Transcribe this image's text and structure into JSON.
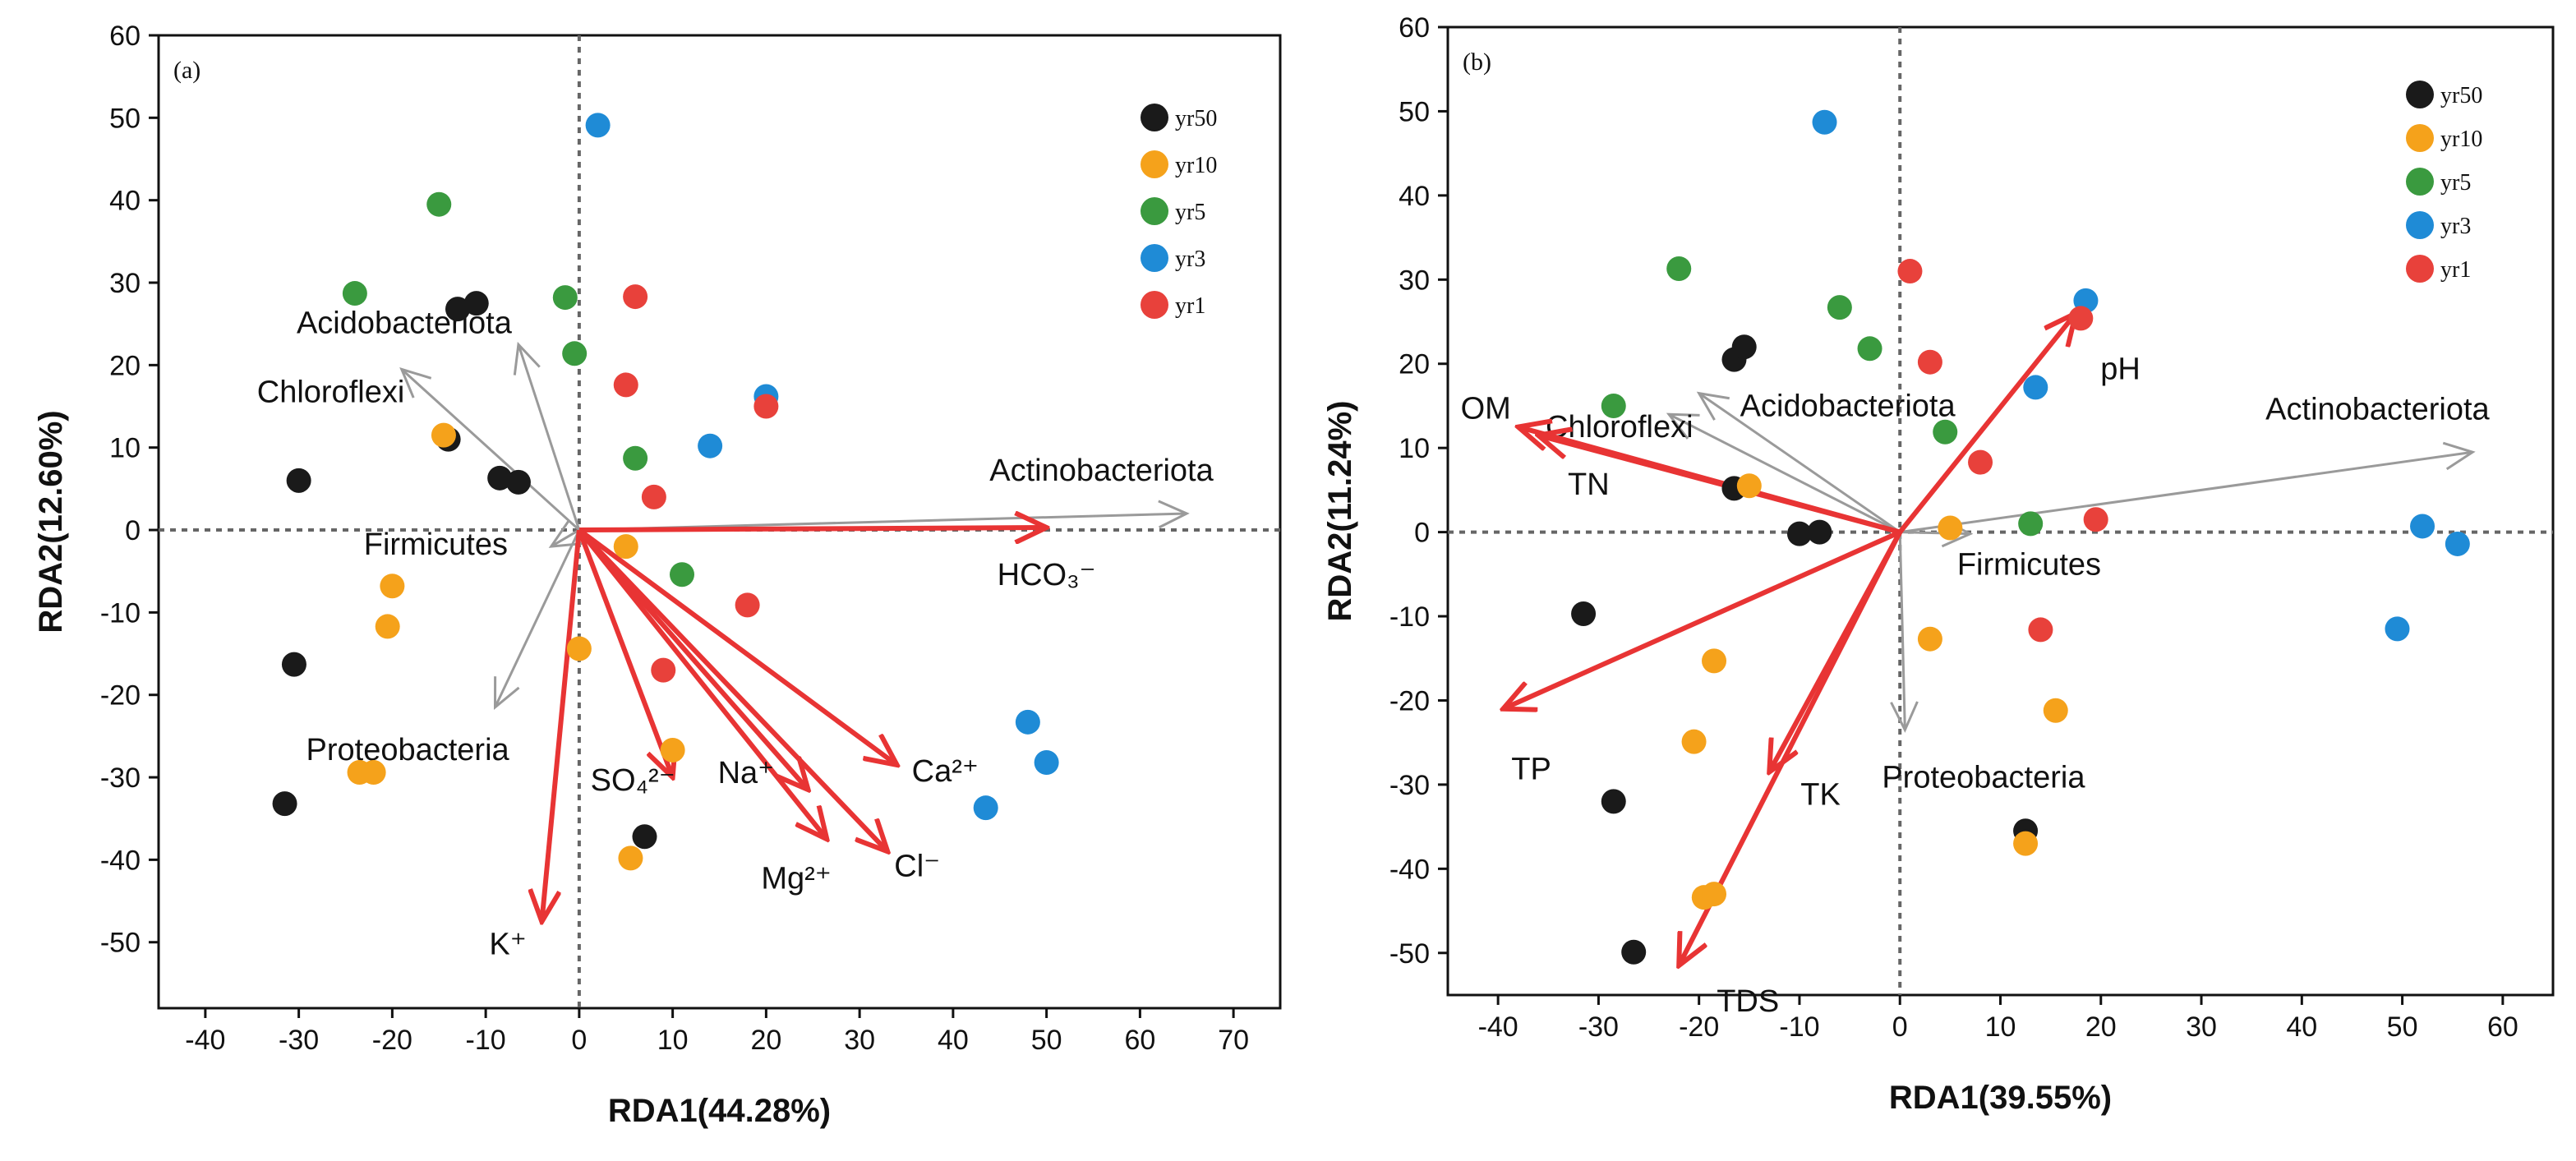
{
  "chart_data": [
    {
      "panel": "(a)",
      "type": "scatter",
      "xlabel": "RDA1(44.28%)",
      "ylabel": "RDA2(12.60%)",
      "xlim": [
        -45,
        75
      ],
      "ylim": [
        -58,
        60
      ],
      "xticks": [
        "-40",
        "-30",
        "-20",
        "-10",
        "0",
        "10",
        "20",
        "30",
        "40",
        "50",
        "60",
        "70"
      ],
      "yticks": [
        "60",
        "50",
        "40",
        "30",
        "20",
        "10",
        "0",
        "-10",
        "-20",
        "-30",
        "-40",
        "-50"
      ],
      "legend": [
        {
          "name": "yr50",
          "color": "#1a1a1a"
        },
        {
          "name": "yr10",
          "color": "#f5a21b"
        },
        {
          "name": "yr5",
          "color": "#3a9a3f"
        },
        {
          "name": "yr3",
          "color": "#1f8bd6"
        },
        {
          "name": "yr1",
          "color": "#e8413b"
        }
      ],
      "series": [
        {
          "name": "yr50",
          "points": [
            [
              -13,
              26.8
            ],
            [
              -11,
              27.5
            ],
            [
              -30,
              6
            ],
            [
              -14,
              11
            ],
            [
              -8.5,
              6.3
            ],
            [
              -6.5,
              5.8
            ],
            [
              -30.5,
              -16.3
            ],
            [
              -31.5,
              -33.2
            ],
            [
              7,
              -37.2
            ]
          ]
        },
        {
          "name": "yr10",
          "points": [
            [
              -14.5,
              11.5
            ],
            [
              -20,
              -6.8
            ],
            [
              -20.5,
              -11.7
            ],
            [
              -23.5,
              -29.4
            ],
            [
              -22,
              -29.4
            ],
            [
              0,
              -14.4
            ],
            [
              5,
              -2
            ],
            [
              10,
              -26.7
            ],
            [
              5.5,
              -39.8
            ]
          ]
        },
        {
          "name": "yr5",
          "points": [
            [
              -15,
              39.5
            ],
            [
              -24,
              28.7
            ],
            [
              -1.5,
              28.2
            ],
            [
              -0.5,
              21.4
            ],
            [
              6,
              8.7
            ],
            [
              11,
              -5.4
            ]
          ]
        },
        {
          "name": "yr3",
          "points": [
            [
              2,
              49.1
            ],
            [
              20,
              16.2
            ],
            [
              14,
              10.2
            ],
            [
              48,
              -23.3
            ],
            [
              50,
              -28.2
            ],
            [
              43.5,
              -33.7
            ]
          ]
        },
        {
          "name": "yr1",
          "points": [
            [
              6,
              28.3
            ],
            [
              5,
              17.6
            ],
            [
              20,
              15
            ],
            [
              8,
              4
            ],
            [
              18,
              -9.1
            ],
            [
              9,
              -17
            ]
          ]
        }
      ],
      "env_vectors": [
        {
          "label": "HCO₃⁻",
          "x": 50,
          "y": 0.3
        },
        {
          "label": "Ca²⁺",
          "x": 34,
          "y": -28.5
        },
        {
          "label": "Cl⁻",
          "x": 33,
          "y": -39
        },
        {
          "label": "Mg²⁺",
          "x": 26.5,
          "y": -37.5
        },
        {
          "label": "Na⁺",
          "x": 24.5,
          "y": -31.5
        },
        {
          "label": "SO₄²⁻",
          "x": 10,
          "y": -30
        },
        {
          "label": "K⁺",
          "x": -4,
          "y": -47.5
        }
      ],
      "species_vectors": [
        {
          "label": "Actinobacteriota",
          "x": 65,
          "y": 2
        },
        {
          "label": "Acidobacteriota",
          "x": -6.5,
          "y": 22.5
        },
        {
          "label": "Chloroflexi",
          "x": -19,
          "y": 19.5
        },
        {
          "label": "Firmicutes",
          "x": -3,
          "y": -2
        },
        {
          "label": "Proteobacteria",
          "x": -9,
          "y": -21.5
        }
      ]
    },
    {
      "panel": "(b)",
      "type": "scatter",
      "xlabel": "RDA1(39.55%)",
      "ylabel": "RDA2(11.24%)",
      "xlim": [
        -45,
        65
      ],
      "ylim": [
        -55,
        60
      ],
      "xticks": [
        "-40",
        "-30",
        "-20",
        "-10",
        "0",
        "10",
        "20",
        "30",
        "40",
        "50",
        "60"
      ],
      "yticks": [
        "60",
        "50",
        "40",
        "30",
        "20",
        "10",
        "0",
        "-10",
        "-20",
        "-30",
        "-40",
        "-50"
      ],
      "legend": [
        {
          "name": "yr50",
          "color": "#1a1a1a"
        },
        {
          "name": "yr10",
          "color": "#f5a21b"
        },
        {
          "name": "yr5",
          "color": "#3a9a3f"
        },
        {
          "name": "yr3",
          "color": "#1f8bd6"
        },
        {
          "name": "yr1",
          "color": "#e8413b"
        }
      ],
      "series": [
        {
          "name": "yr50",
          "points": [
            [
              -16.5,
              20.5
            ],
            [
              -15.5,
              22
            ],
            [
              -16.5,
              5.2
            ],
            [
              -10,
              -0.2
            ],
            [
              -8,
              0
            ],
            [
              -31.5,
              -9.7
            ],
            [
              -28.5,
              -32
            ],
            [
              -26.5,
              -49.9
            ],
            [
              12.5,
              -35.5
            ]
          ]
        },
        {
          "name": "yr10",
          "points": [
            [
              -15,
              5.5
            ],
            [
              5,
              0.5
            ],
            [
              3,
              -12.7
            ],
            [
              -18.5,
              -15.3
            ],
            [
              15.5,
              -21.2
            ],
            [
              -20.5,
              -24.9
            ],
            [
              -19.5,
              -43.4
            ],
            [
              -18.5,
              -43
            ],
            [
              12.5,
              -37
            ]
          ]
        },
        {
          "name": "yr5",
          "points": [
            [
              -22,
              31.3
            ],
            [
              -6,
              26.7
            ],
            [
              -3,
              21.8
            ],
            [
              -28.5,
              15
            ],
            [
              4.5,
              11.9
            ],
            [
              13,
              1
            ]
          ]
        },
        {
          "name": "yr3",
          "points": [
            [
              -7.5,
              48.7
            ],
            [
              18.5,
              27.5
            ],
            [
              13.5,
              17.2
            ],
            [
              52,
              0.7
            ],
            [
              55.5,
              -1.4
            ],
            [
              49.5,
              -11.5
            ]
          ]
        },
        {
          "name": "yr1",
          "points": [
            [
              1,
              31
            ],
            [
              3,
              20.2
            ],
            [
              18,
              25.4
            ],
            [
              8,
              8.3
            ],
            [
              19.5,
              1.5
            ],
            [
              14,
              -11.6
            ]
          ]
        }
      ],
      "env_vectors": [
        {
          "label": "pH",
          "x": 17.5,
          "y": 26
        },
        {
          "label": "OM",
          "x": -38,
          "y": 12.5
        },
        {
          "label": "TN",
          "x": -36,
          "y": 11.5
        },
        {
          "label": "TP",
          "x": -39.5,
          "y": -21
        },
        {
          "label": "TK",
          "x": -13,
          "y": -28.5
        },
        {
          "label": "TDS",
          "x": -22,
          "y": -51.5
        }
      ],
      "species_vectors": [
        {
          "label": "Actinobacteriota",
          "x": 57,
          "y": 9.5
        },
        {
          "label": "Acidobacteriota",
          "x": -20,
          "y": 16.5
        },
        {
          "label": "Chloroflexi",
          "x": -23,
          "y": 14
        },
        {
          "label": "Firmicutes",
          "x": 7,
          "y": -0.2
        },
        {
          "label": "Proteobacteria",
          "x": 0.5,
          "y": -23.5
        }
      ]
    }
  ]
}
